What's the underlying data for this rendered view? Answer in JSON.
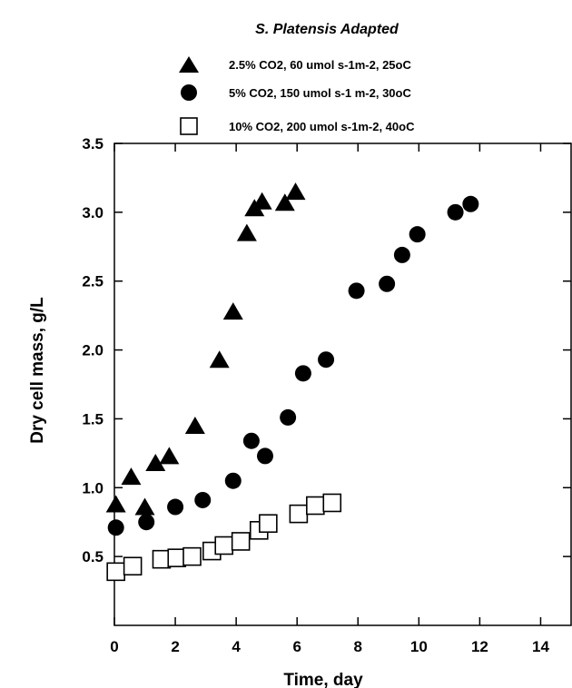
{
  "chart_data": {
    "type": "scatter",
    "title": "S. Platensis Adapted",
    "xlabel": "Time, day",
    "ylabel": "Dry cell mass, g/L",
    "xlim": [
      0,
      15
    ],
    "ylim": [
      0,
      3.5
    ],
    "xticks": [
      0,
      2,
      4,
      6,
      8,
      10,
      12,
      14
    ],
    "yticks": [
      0.5,
      1.0,
      1.5,
      2.0,
      2.5,
      3.0,
      3.5
    ],
    "xtick_labels": [
      "0",
      "2",
      "4",
      "6",
      "8",
      "10",
      "12",
      "14"
    ],
    "ytick_labels": [
      "0.5",
      "1.0",
      "1.5",
      "2.0",
      "2.5",
      "3.0",
      "3.5"
    ],
    "grid": false,
    "legend_position": "top",
    "series": [
      {
        "name": "2.5% CO2, 60 umol s-1m-2, 25oC",
        "marker": "filled-triangle",
        "color": "#000000",
        "points": [
          [
            0.05,
            0.88
          ],
          [
            0.55,
            1.08
          ],
          [
            1.0,
            0.86
          ],
          [
            1.35,
            1.18
          ],
          [
            1.8,
            1.23
          ],
          [
            2.65,
            1.45
          ],
          [
            3.45,
            1.93
          ],
          [
            3.9,
            2.28
          ],
          [
            4.35,
            2.85
          ],
          [
            4.6,
            3.03
          ],
          [
            4.85,
            3.08
          ],
          [
            5.6,
            3.07
          ],
          [
            5.95,
            3.15
          ]
        ]
      },
      {
        "name": "5% CO2, 150 umol s-1 m-2, 30oC",
        "marker": "filled-circle",
        "color": "#000000",
        "points": [
          [
            0.05,
            0.71
          ],
          [
            1.05,
            0.75
          ],
          [
            2.0,
            0.86
          ],
          [
            2.9,
            0.91
          ],
          [
            3.9,
            1.05
          ],
          [
            4.5,
            1.34
          ],
          [
            4.95,
            1.23
          ],
          [
            5.7,
            1.51
          ],
          [
            6.2,
            1.83
          ],
          [
            6.95,
            1.93
          ],
          [
            7.95,
            2.43
          ],
          [
            8.95,
            2.48
          ],
          [
            9.45,
            2.69
          ],
          [
            9.95,
            2.84
          ],
          [
            11.2,
            3.0
          ],
          [
            11.7,
            3.06
          ]
        ]
      },
      {
        "name": "10% CO2, 200 umol s-1m-2, 40oC",
        "marker": "open-square",
        "color": "#000000",
        "points": [
          [
            0.05,
            0.39
          ],
          [
            0.6,
            0.43
          ],
          [
            1.55,
            0.48
          ],
          [
            2.05,
            0.49
          ],
          [
            2.55,
            0.5
          ],
          [
            3.2,
            0.54
          ],
          [
            3.6,
            0.58
          ],
          [
            4.15,
            0.61
          ],
          [
            4.75,
            0.69
          ],
          [
            5.05,
            0.74
          ],
          [
            6.05,
            0.81
          ],
          [
            6.6,
            0.87
          ],
          [
            7.15,
            0.89
          ]
        ]
      }
    ]
  }
}
